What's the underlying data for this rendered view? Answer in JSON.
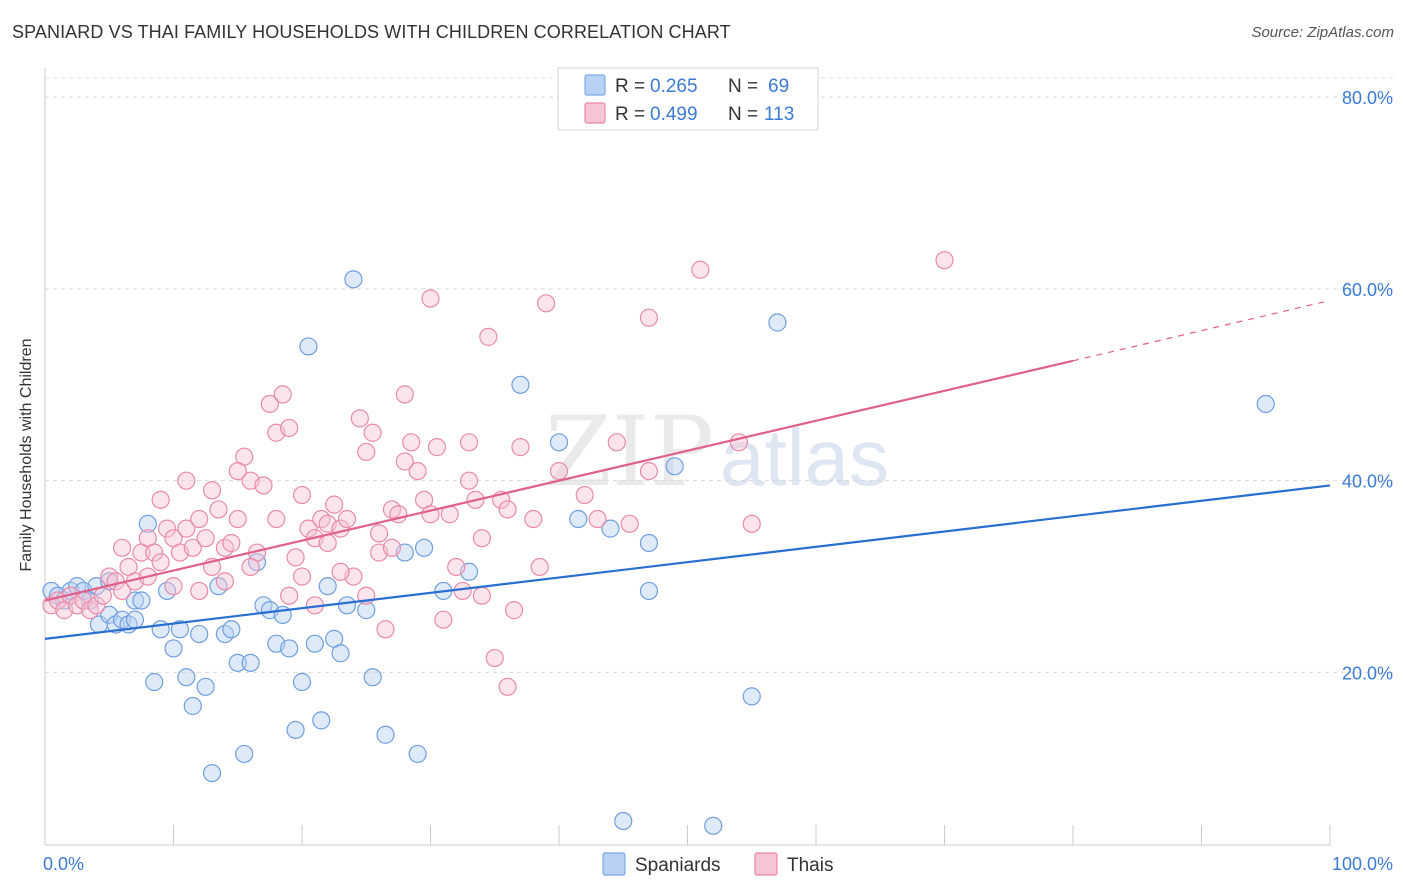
{
  "header": {
    "title": "SPANIARD VS THAI FAMILY HOUSEHOLDS WITH CHILDREN CORRELATION CHART",
    "source": "Source: ZipAtlas.com"
  },
  "watermark": {
    "zip": "ZIP",
    "atlas": "atlas"
  },
  "chart_data": {
    "type": "scatter",
    "title": "SPANIARD VS THAI FAMILY HOUSEHOLDS WITH CHILDREN CORRELATION CHART",
    "xlabel": "",
    "ylabel": "Family Households with Children",
    "xlim": [
      0,
      100
    ],
    "ylim": [
      2,
      82
    ],
    "x_tick_labels": [
      "0.0%",
      "100.0%"
    ],
    "y_ticks": [
      20,
      40,
      60,
      80
    ],
    "y_tick_labels": [
      "20.0%",
      "40.0%",
      "60.0%",
      "80.0%"
    ],
    "grid": true,
    "legend_position": "top-center",
    "legend": [
      {
        "name": "Spaniards",
        "r_label": "R =",
        "r": "0.265",
        "n_label": "N =",
        "n": "69",
        "color": "#7aaae8",
        "fill": "#b8d1f2"
      },
      {
        "name": "Thais",
        "r_label": "R =",
        "r": "0.499",
        "n_label": "N =",
        "n": "113",
        "color": "#e88aa8",
        "fill": "#f6c4d4"
      }
    ],
    "series": [
      {
        "name": "Spaniards",
        "color": "#6f9fe0",
        "trend": {
          "x0": 0,
          "y0": 23.5,
          "x1": 100,
          "y1": 39.5,
          "color": "#2a6fd0"
        },
        "points": [
          [
            0.5,
            28.5
          ],
          [
            1,
            28
          ],
          [
            1.5,
            27.5
          ],
          [
            2,
            28.5
          ],
          [
            2.5,
            29
          ],
          [
            3,
            28.5
          ],
          [
            3.5,
            27.5
          ],
          [
            4,
            29
          ],
          [
            5,
            29.5
          ],
          [
            4.2,
            25
          ],
          [
            5,
            26
          ],
          [
            5.5,
            25
          ],
          [
            6,
            25.5
          ],
          [
            6.5,
            25
          ],
          [
            7,
            27.5
          ],
          [
            7,
            25.5
          ],
          [
            7.5,
            27.5
          ],
          [
            8,
            35.5
          ],
          [
            8.5,
            19
          ],
          [
            9,
            24.5
          ],
          [
            9.5,
            28.5
          ],
          [
            10,
            22.5
          ],
          [
            10.5,
            24.5
          ],
          [
            11,
            19.5
          ],
          [
            11.5,
            16.5
          ],
          [
            12,
            24
          ],
          [
            12.5,
            18.5
          ],
          [
            13,
            9.5
          ],
          [
            13.5,
            29
          ],
          [
            14,
            24
          ],
          [
            14.5,
            24.5
          ],
          [
            15,
            21
          ],
          [
            15.5,
            11.5
          ],
          [
            16,
            21
          ],
          [
            16.5,
            31.5
          ],
          [
            17,
            27
          ],
          [
            17.5,
            26.5
          ],
          [
            18,
            23
          ],
          [
            18.5,
            26
          ],
          [
            19,
            22.5
          ],
          [
            19.5,
            14
          ],
          [
            20,
            19
          ],
          [
            20.5,
            54
          ],
          [
            21,
            23
          ],
          [
            21.5,
            15
          ],
          [
            22,
            29
          ],
          [
            22.5,
            23.5
          ],
          [
            23,
            22
          ],
          [
            23.5,
            27
          ],
          [
            24,
            61
          ],
          [
            25,
            26.5
          ],
          [
            25.5,
            19.5
          ],
          [
            26.5,
            13.5
          ],
          [
            28,
            32.5
          ],
          [
            29,
            11.5
          ],
          [
            29.5,
            33
          ],
          [
            31,
            28.5
          ],
          [
            33,
            30.5
          ],
          [
            37,
            50
          ],
          [
            40,
            44
          ],
          [
            41.5,
            36
          ],
          [
            44,
            35
          ],
          [
            45,
            4.5
          ],
          [
            47,
            33.5
          ],
          [
            47,
            28.5
          ],
          [
            49,
            41.5
          ],
          [
            52,
            4
          ],
          [
            55,
            17.5
          ],
          [
            57,
            56.5
          ],
          [
            95,
            48
          ]
        ]
      },
      {
        "name": "Thais",
        "color": "#e98aaa",
        "trend": {
          "x0": 0,
          "y0": 27.5,
          "x1": 80,
          "y1": 52.5,
          "color": "#e0608a",
          "dash_to": {
            "x": 100,
            "y": 58.8
          }
        },
        "points": [
          [
            0.5,
            27
          ],
          [
            1,
            27.5
          ],
          [
            1.5,
            26.5
          ],
          [
            2,
            28
          ],
          [
            2.5,
            27
          ],
          [
            3,
            27.5
          ],
          [
            3.5,
            26.5
          ],
          [
            4,
            27
          ],
          [
            4.5,
            28
          ],
          [
            5,
            30
          ],
          [
            5.5,
            29.5
          ],
          [
            6,
            28.5
          ],
          [
            6.5,
            31
          ],
          [
            7,
            29.5
          ],
          [
            7.5,
            32.5
          ],
          [
            8,
            34
          ],
          [
            8.5,
            32.5
          ],
          [
            9,
            31.5
          ],
          [
            9.5,
            35
          ],
          [
            10,
            34
          ],
          [
            10.5,
            32.5
          ],
          [
            11,
            35
          ],
          [
            11.5,
            33
          ],
          [
            12,
            36
          ],
          [
            12.5,
            34
          ],
          [
            13,
            31
          ],
          [
            13.5,
            37
          ],
          [
            14,
            33
          ],
          [
            14.5,
            33.5
          ],
          [
            15,
            36
          ],
          [
            15.5,
            42.5
          ],
          [
            16,
            40
          ],
          [
            16.5,
            32.5
          ],
          [
            17,
            39.5
          ],
          [
            17.5,
            48
          ],
          [
            18,
            45
          ],
          [
            18.5,
            49
          ],
          [
            19,
            45.5
          ],
          [
            19.5,
            32
          ],
          [
            20,
            38.5
          ],
          [
            20.5,
            35
          ],
          [
            21,
            34
          ],
          [
            21.5,
            36
          ],
          [
            22,
            35.5
          ],
          [
            22.5,
            37.5
          ],
          [
            23,
            35
          ],
          [
            23.5,
            36
          ],
          [
            24,
            30
          ],
          [
            24.5,
            46.5
          ],
          [
            25,
            43
          ],
          [
            25.5,
            45
          ],
          [
            26,
            32.5
          ],
          [
            26.5,
            24.5
          ],
          [
            27,
            37
          ],
          [
            27.5,
            36.5
          ],
          [
            28,
            49
          ],
          [
            28.5,
            44
          ],
          [
            29,
            41
          ],
          [
            29.5,
            38
          ],
          [
            30,
            59
          ],
          [
            30.5,
            43.5
          ],
          [
            31,
            25.5
          ],
          [
            31.5,
            36.5
          ],
          [
            32,
            31
          ],
          [
            32.5,
            28.5
          ],
          [
            33,
            44
          ],
          [
            33.5,
            38
          ],
          [
            34,
            28
          ],
          [
            34.5,
            55
          ],
          [
            35,
            21.5
          ],
          [
            35.5,
            38
          ],
          [
            36,
            37
          ],
          [
            36.5,
            26.5
          ],
          [
            37,
            43.5
          ],
          [
            38,
            36
          ],
          [
            38.5,
            31
          ],
          [
            39,
            58.5
          ],
          [
            42,
            38.5
          ],
          [
            43,
            36
          ],
          [
            44.5,
            44
          ],
          [
            45.5,
            35.5
          ],
          [
            47,
            57
          ],
          [
            47,
            41
          ],
          [
            51,
            62
          ],
          [
            54,
            44
          ],
          [
            55,
            35.5
          ],
          [
            70,
            63
          ],
          [
            16,
            31
          ],
          [
            10,
            29
          ],
          [
            8,
            30
          ],
          [
            6,
            33
          ],
          [
            20,
            30
          ],
          [
            22,
            33.5
          ],
          [
            25,
            28
          ],
          [
            28,
            42
          ],
          [
            33,
            40
          ],
          [
            40,
            41
          ],
          [
            12,
            28.5
          ],
          [
            14,
            29.5
          ],
          [
            18,
            36
          ],
          [
            23,
            30.5
          ],
          [
            27,
            33
          ],
          [
            30,
            36.5
          ],
          [
            34,
            34
          ],
          [
            36,
            18.5
          ],
          [
            9,
            38
          ],
          [
            11,
            40
          ],
          [
            13,
            39
          ],
          [
            15,
            41
          ],
          [
            19,
            28
          ],
          [
            21,
            27
          ],
          [
            26,
            34.5
          ]
        ]
      }
    ]
  }
}
